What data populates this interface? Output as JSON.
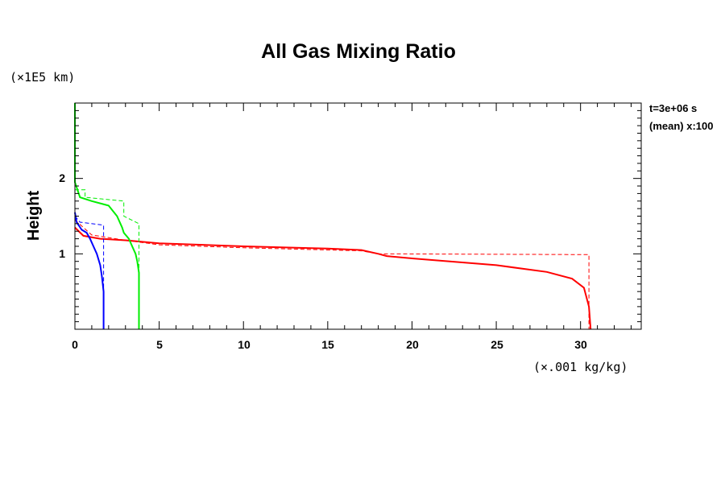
{
  "chart_data": {
    "type": "line",
    "title": "All Gas Mixing Ratio",
    "ylabel": "Height",
    "y_unit": "(×1E5 km)",
    "x_unit": "(×.001 kg/kg)",
    "annotations": [
      "t=3e+06 s",
      "(mean) x:100"
    ],
    "xlim": [
      0,
      33.6
    ],
    "ylim": [
      0,
      3.0
    ],
    "x_ticks": [
      "0",
      "5",
      "10",
      "15",
      "20",
      "25",
      "30"
    ],
    "y_ticks": [
      "1",
      "2"
    ],
    "grid": false,
    "legend": "none",
    "series": [
      {
        "color": "#ff0000",
        "style": "solid",
        "x": [
          0.0,
          0.5,
          1.5,
          3.0,
          5.0,
          10.0,
          15.0,
          17.0,
          18.0,
          18.5,
          20.0,
          25.0,
          28.0,
          29.5,
          30.2,
          30.5,
          30.6
        ],
        "y": [
          1.35,
          1.24,
          1.2,
          1.18,
          1.14,
          1.1,
          1.07,
          1.05,
          1.0,
          0.97,
          0.94,
          0.85,
          0.76,
          0.67,
          0.55,
          0.3,
          0.0
        ]
      },
      {
        "color": "#ff0000",
        "style": "dashed",
        "x": [
          0.0,
          1.0,
          3.0,
          5.0,
          10.0,
          17.0,
          18.0,
          30.5,
          30.5
        ],
        "y": [
          1.45,
          1.25,
          1.18,
          1.12,
          1.08,
          1.04,
          1.0,
          0.99,
          0.0
        ]
      },
      {
        "color": "#00ee00",
        "style": "solid",
        "x": [
          0.0,
          0.0,
          0.3,
          1.0,
          2.0,
          2.5,
          2.8,
          2.9,
          3.2,
          3.4,
          3.6,
          3.7,
          3.8,
          3.8
        ],
        "y": [
          3.0,
          1.95,
          1.75,
          1.7,
          1.64,
          1.5,
          1.35,
          1.28,
          1.2,
          1.1,
          1.0,
          0.9,
          0.75,
          0.0
        ]
      },
      {
        "color": "#00ee00",
        "style": "dashed",
        "x": [
          0.0,
          0.6,
          0.6,
          2.9,
          2.9,
          3.8,
          3.8
        ],
        "y": [
          1.85,
          1.85,
          1.75,
          1.7,
          1.5,
          1.4,
          0.0
        ]
      },
      {
        "color": "#0000ff",
        "style": "solid",
        "x": [
          0.0,
          0.1,
          0.4,
          0.7,
          0.9,
          1.1,
          1.3,
          1.5,
          1.6,
          1.7,
          1.7
        ],
        "y": [
          1.55,
          1.42,
          1.32,
          1.28,
          1.2,
          1.1,
          1.0,
          0.85,
          0.7,
          0.5,
          0.0
        ]
      },
      {
        "color": "#0000ff",
        "style": "dashed",
        "x": [
          0.0,
          0.3,
          1.7,
          1.7
        ],
        "y": [
          1.5,
          1.42,
          1.38,
          0.0
        ]
      }
    ]
  }
}
